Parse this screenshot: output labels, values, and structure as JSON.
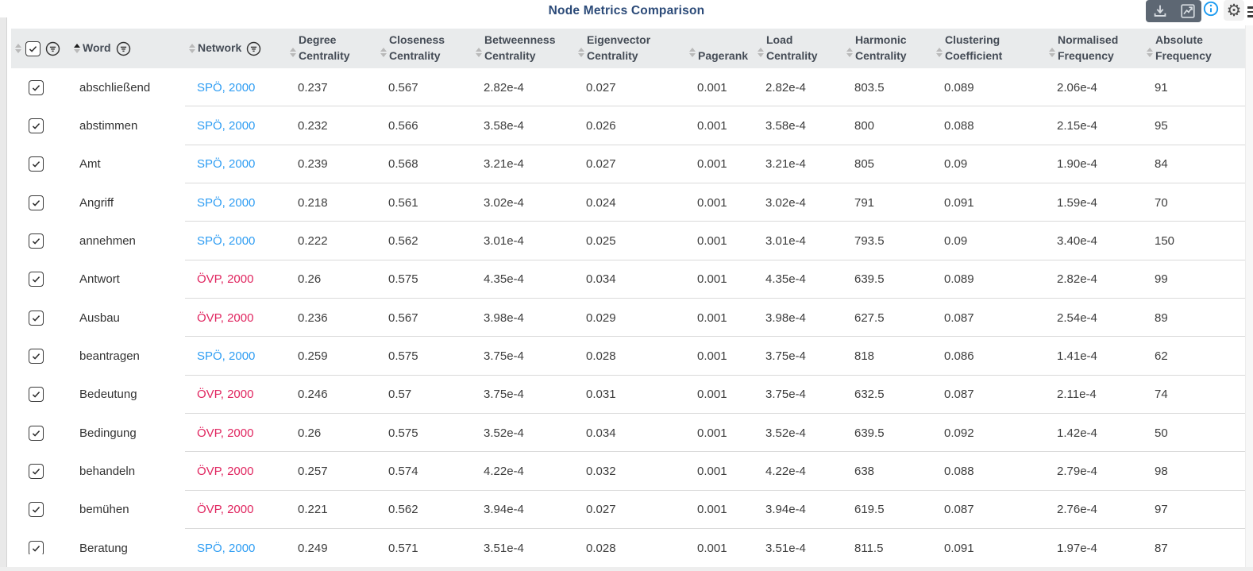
{
  "title": "Node Metrics Comparison",
  "toolbar": {
    "icons": [
      "download-icon",
      "trend-chart-icon"
    ],
    "info_icon": "info-icon",
    "gear_icon": "gear-icon",
    "menu_icon": "menu-icon",
    "background": "#5d6773",
    "info_color": "#1d9bf0"
  },
  "colors": {
    "spo": "#2e9df3",
    "ovp": "#e0255f",
    "title": "#2b4a78",
    "header_bg": "#e9ebec",
    "header_text": "#454c56",
    "row_separator": "#dadada"
  },
  "table": {
    "columns": [
      {
        "id": "select",
        "label": "",
        "type": "select",
        "filter": true,
        "sorted": "none"
      },
      {
        "id": "word",
        "label": "Word",
        "type": "text",
        "filter": true,
        "sorted": "asc"
      },
      {
        "id": "network",
        "label": "Network",
        "type": "text",
        "filter": true,
        "sorted": "none"
      },
      {
        "id": "degree",
        "label": "Degree Centrality",
        "type": "num",
        "filter": false,
        "sorted": "none"
      },
      {
        "id": "closeness",
        "label": "Closeness Centrality",
        "type": "num",
        "filter": false,
        "sorted": "none"
      },
      {
        "id": "betweenness",
        "label": "Betweenness Centrality",
        "type": "num",
        "filter": false,
        "sorted": "none"
      },
      {
        "id": "eigenvector",
        "label": "Eigenvector Centrality",
        "type": "num",
        "filter": false,
        "sorted": "none"
      },
      {
        "id": "pagerank",
        "label": "Pagerank",
        "type": "num",
        "filter": false,
        "sorted": "none"
      },
      {
        "id": "load",
        "label": "Load Centrality",
        "type": "num",
        "filter": false,
        "sorted": "none"
      },
      {
        "id": "harmonic",
        "label": "Harmonic Centrality",
        "type": "num",
        "filter": false,
        "sorted": "none"
      },
      {
        "id": "clustering",
        "label": "Clustering Coefficient",
        "type": "num",
        "filter": false,
        "sorted": "none"
      },
      {
        "id": "normalised",
        "label": "Normalised Frequency",
        "type": "num",
        "filter": false,
        "sorted": "none"
      },
      {
        "id": "absolute",
        "label": "Absolute Frequency",
        "type": "num",
        "filter": false,
        "sorted": "none"
      }
    ],
    "rows": [
      {
        "checked": true,
        "word": "abschließend",
        "network": "SPÖ, 2000",
        "party": "spo",
        "values": [
          "0.237",
          "0.567",
          "2.82e-4",
          "0.027",
          "0.001",
          "2.82e-4",
          "803.5",
          "0.089",
          "2.06e-4",
          "91"
        ]
      },
      {
        "checked": true,
        "word": "abstimmen",
        "network": "SPÖ, 2000",
        "party": "spo",
        "values": [
          "0.232",
          "0.566",
          "3.58e-4",
          "0.026",
          "0.001",
          "3.58e-4",
          "800",
          "0.088",
          "2.15e-4",
          "95"
        ]
      },
      {
        "checked": true,
        "word": "Amt",
        "network": "SPÖ, 2000",
        "party": "spo",
        "values": [
          "0.239",
          "0.568",
          "3.21e-4",
          "0.027",
          "0.001",
          "3.21e-4",
          "805",
          "0.09",
          "1.90e-4",
          "84"
        ]
      },
      {
        "checked": true,
        "word": "Angriff",
        "network": "SPÖ, 2000",
        "party": "spo",
        "values": [
          "0.218",
          "0.561",
          "3.02e-4",
          "0.024",
          "0.001",
          "3.02e-4",
          "791",
          "0.091",
          "1.59e-4",
          "70"
        ]
      },
      {
        "checked": true,
        "word": "annehmen",
        "network": "SPÖ, 2000",
        "party": "spo",
        "values": [
          "0.222",
          "0.562",
          "3.01e-4",
          "0.025",
          "0.001",
          "3.01e-4",
          "793.5",
          "0.09",
          "3.40e-4",
          "150"
        ]
      },
      {
        "checked": true,
        "word": "Antwort",
        "network": "ÖVP, 2000",
        "party": "ovp",
        "values": [
          "0.26",
          "0.575",
          "4.35e-4",
          "0.034",
          "0.001",
          "4.35e-4",
          "639.5",
          "0.089",
          "2.82e-4",
          "99"
        ]
      },
      {
        "checked": true,
        "word": "Ausbau",
        "network": "ÖVP, 2000",
        "party": "ovp",
        "values": [
          "0.236",
          "0.567",
          "3.98e-4",
          "0.029",
          "0.001",
          "3.98e-4",
          "627.5",
          "0.087",
          "2.54e-4",
          "89"
        ]
      },
      {
        "checked": true,
        "word": "beantragen",
        "network": "SPÖ, 2000",
        "party": "spo",
        "values": [
          "0.259",
          "0.575",
          "3.75e-4",
          "0.028",
          "0.001",
          "3.75e-4",
          "818",
          "0.086",
          "1.41e-4",
          "62"
        ]
      },
      {
        "checked": true,
        "word": "Bedeutung",
        "network": "ÖVP, 2000",
        "party": "ovp",
        "values": [
          "0.246",
          "0.57",
          "3.75e-4",
          "0.031",
          "0.001",
          "3.75e-4",
          "632.5",
          "0.087",
          "2.11e-4",
          "74"
        ]
      },
      {
        "checked": true,
        "word": "Bedingung",
        "network": "ÖVP, 2000",
        "party": "ovp",
        "values": [
          "0.26",
          "0.575",
          "3.52e-4",
          "0.034",
          "0.001",
          "3.52e-4",
          "639.5",
          "0.092",
          "1.42e-4",
          "50"
        ]
      },
      {
        "checked": true,
        "word": "behandeln",
        "network": "ÖVP, 2000",
        "party": "ovp",
        "values": [
          "0.257",
          "0.574",
          "4.22e-4",
          "0.032",
          "0.001",
          "4.22e-4",
          "638",
          "0.088",
          "2.79e-4",
          "98"
        ]
      },
      {
        "checked": true,
        "word": "bemühen",
        "network": "ÖVP, 2000",
        "party": "ovp",
        "values": [
          "0.221",
          "0.562",
          "3.94e-4",
          "0.027",
          "0.001",
          "3.94e-4",
          "619.5",
          "0.087",
          "2.76e-4",
          "97"
        ]
      },
      {
        "checked": true,
        "word": "Beratung",
        "network": "SPÖ, 2000",
        "party": "spo",
        "values": [
          "0.249",
          "0.571",
          "3.51e-4",
          "0.028",
          "0.001",
          "3.51e-4",
          "811.5",
          "0.091",
          "1.97e-4",
          "87"
        ]
      }
    ]
  }
}
